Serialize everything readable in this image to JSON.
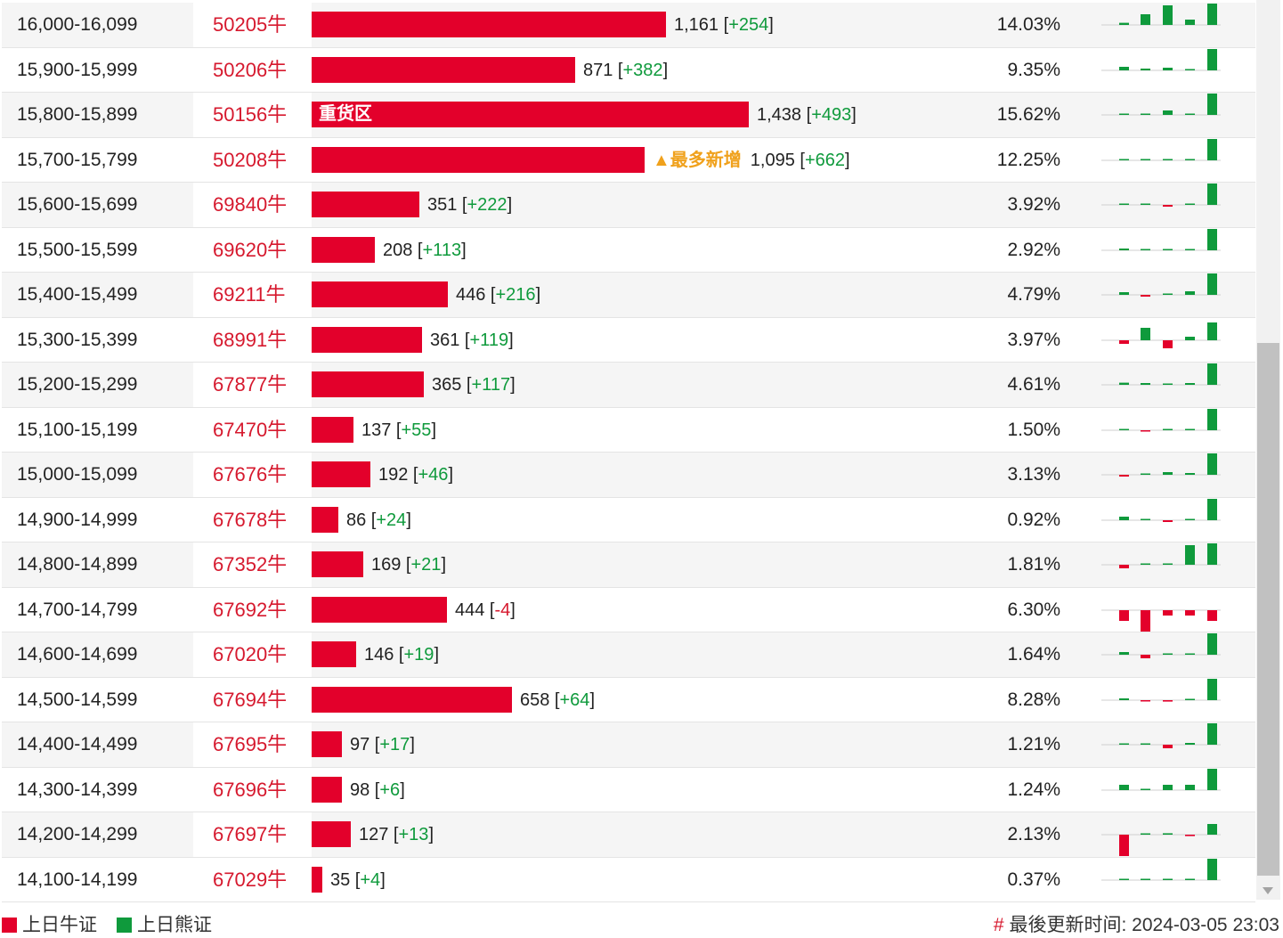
{
  "colors": {
    "bull": "#e3002b",
    "bear": "#0f9a3c",
    "code_text": "#d6192e",
    "most_added": "#f0a11c"
  },
  "rows": [
    {
      "range": "16,000-16,099",
      "code": "50205牛",
      "bar_pct": 0.51,
      "count": "1,161",
      "change": "+254",
      "pct": "14.03%",
      "spark": [
        0.12,
        0.6,
        1.1,
        0.3,
        1.2
      ]
    },
    {
      "range": "15,900-15,999",
      "code": "50206牛",
      "bar_pct": 0.38,
      "count": "871",
      "change": "+382",
      "pct": "9.35%",
      "spark": [
        0.2,
        0.1,
        0.15,
        0.05,
        1.2
      ]
    },
    {
      "range": "15,800-15,899",
      "code": "50156牛",
      "bar_pct": 0.63,
      "count": "1,438",
      "change": "+493",
      "pct": "15.62%",
      "label_in_bar": "重货区",
      "spark": [
        0.06,
        0.06,
        0.25,
        0.06,
        1.2
      ]
    },
    {
      "range": "15,700-15,799",
      "code": "50208牛",
      "bar_pct": 0.48,
      "count": "1,095",
      "change": "+662",
      "pct": "12.25%",
      "tag": "▲最多新增",
      "spark": [
        0.03,
        0.03,
        0.03,
        0.03,
        1.2
      ]
    },
    {
      "range": "15,600-15,699",
      "code": "69840牛",
      "bar_pct": 0.155,
      "count": "351",
      "change": "+222",
      "pct": "3.92%",
      "spark": [
        0.06,
        0.05,
        -0.1,
        0.05,
        1.2
      ]
    },
    {
      "range": "15,500-15,599",
      "code": "69620牛",
      "bar_pct": 0.091,
      "count": "208",
      "change": "+113",
      "pct": "2.92%",
      "spark": [
        0.1,
        0.05,
        0.05,
        0.05,
        1.2
      ]
    },
    {
      "range": "15,400-15,499",
      "code": "69211牛",
      "bar_pct": 0.196,
      "count": "446",
      "change": "+216",
      "pct": "4.79%",
      "spark": [
        0.15,
        -0.1,
        0.05,
        0.2,
        1.2
      ]
    },
    {
      "range": "15,300-15,399",
      "code": "68991牛",
      "bar_pct": 0.159,
      "count": "361",
      "change": "+119",
      "pct": "3.97%",
      "spark": [
        -0.2,
        0.7,
        -0.45,
        0.2,
        1.0
      ]
    },
    {
      "range": "15,200-15,299",
      "code": "67877牛",
      "bar_pct": 0.161,
      "count": "365",
      "change": "+117",
      "pct": "4.61%",
      "spark": [
        0.12,
        0.1,
        0.06,
        0.1,
        1.2
      ]
    },
    {
      "range": "15,100-15,199",
      "code": "67470牛",
      "bar_pct": 0.06,
      "count": "137",
      "change": "+55",
      "pct": "1.50%",
      "spark": [
        0.03,
        -0.05,
        0.0,
        0.03,
        1.2
      ]
    },
    {
      "range": "15,000-15,099",
      "code": "67676牛",
      "bar_pct": 0.084,
      "count": "192",
      "change": "+46",
      "pct": "3.13%",
      "spark": [
        -0.1,
        0.0,
        0.15,
        0.1,
        1.2
      ]
    },
    {
      "range": "14,900-14,999",
      "code": "67678牛",
      "bar_pct": 0.038,
      "count": "86",
      "change": "+24",
      "pct": "0.92%",
      "spark": [
        0.2,
        0.06,
        -0.1,
        0.0,
        1.2
      ]
    },
    {
      "range": "14,800-14,899",
      "code": "67352牛",
      "bar_pct": 0.074,
      "count": "169",
      "change": "+21",
      "pct": "1.81%",
      "spark": [
        -0.2,
        0.0,
        0.0,
        1.1,
        1.2
      ]
    },
    {
      "range": "14,700-14,799",
      "code": "67692牛",
      "bar_pct": 0.195,
      "count": "444",
      "change": "-4",
      "pct": "6.30%",
      "spark": [
        -0.6,
        -1.2,
        -0.3,
        -0.3,
        -0.6
      ]
    },
    {
      "range": "14,600-14,699",
      "code": "67020牛",
      "bar_pct": 0.064,
      "count": "146",
      "change": "+19",
      "pct": "1.64%",
      "spark": [
        0.15,
        -0.2,
        0.0,
        0.0,
        1.2
      ]
    },
    {
      "range": "14,500-14,599",
      "code": "67694牛",
      "bar_pct": 0.289,
      "count": "658",
      "change": "+64",
      "pct": "8.28%",
      "spark": [
        0.1,
        -0.05,
        -0.08,
        0.05,
        1.2
      ]
    },
    {
      "range": "14,400-14,499",
      "code": "67695牛",
      "bar_pct": 0.043,
      "count": "97",
      "change": "+17",
      "pct": "1.21%",
      "spark": [
        0.05,
        0.0,
        -0.2,
        0.1,
        1.2
      ]
    },
    {
      "range": "14,300-14,399",
      "code": "67696牛",
      "bar_pct": 0.043,
      "count": "98",
      "change": "+6",
      "pct": "1.24%",
      "spark": [
        0.3,
        0.0,
        0.3,
        0.3,
        1.2
      ]
    },
    {
      "range": "14,200-14,299",
      "code": "67697牛",
      "bar_pct": 0.056,
      "count": "127",
      "change": "+13",
      "pct": "2.13%",
      "spark": [
        -1.2,
        0.0,
        0.08,
        -0.08,
        0.6
      ]
    },
    {
      "range": "14,100-14,199",
      "code": "67029牛",
      "bar_pct": 0.015,
      "count": "35",
      "change": "+4",
      "pct": "0.37%",
      "spark": [
        0.0,
        0.0,
        0.0,
        0.0,
        1.2
      ]
    }
  ],
  "legend": {
    "bull_label": "上日牛证",
    "bear_label": "上日熊证"
  },
  "footer": {
    "hash": "#",
    "updated_label": "最後更新时间: 2024-03-05 23:03"
  }
}
